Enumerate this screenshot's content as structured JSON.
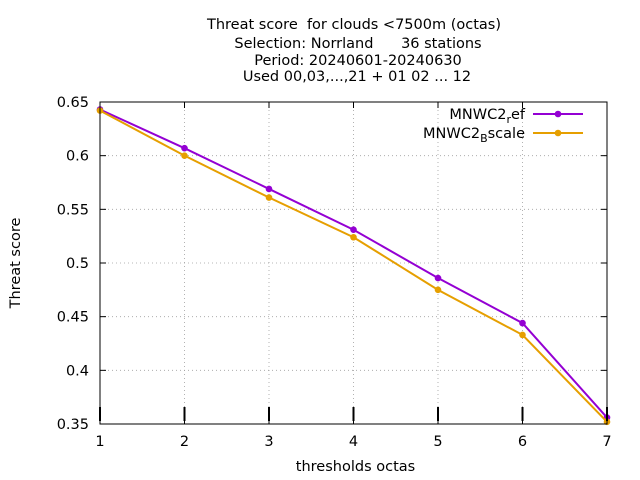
{
  "chart_data": {
    "type": "line",
    "title": "Threat score  for clouds <7500m (octas)",
    "subtitle_lines": [
      "Selection: Norrland      36 stations",
      "Period: 20240601-20240630",
      "Used 00,03,...,21 + 01 02 ... 12"
    ],
    "xlabel": "thresholds octas",
    "ylabel": "Threat score",
    "xlim": [
      1,
      7
    ],
    "ylim": [
      0.35,
      0.65
    ],
    "x_ticks": [
      1,
      2,
      3,
      4,
      5,
      6,
      7
    ],
    "x_tick_labels": [
      "1",
      "2",
      "3",
      "4",
      "5",
      "6",
      "7"
    ],
    "y_ticks": [
      0.35,
      0.4,
      0.45,
      0.5,
      0.55,
      0.6,
      0.65
    ],
    "y_tick_labels": [
      "0.35",
      "0.4",
      "0.45",
      "0.5",
      "0.55",
      "0.6",
      "0.65"
    ],
    "grid": true,
    "legend_position": "top-right",
    "x": [
      1,
      2,
      3,
      4,
      5,
      6,
      7
    ],
    "series": [
      {
        "name": "MNWC2_ref",
        "legend_base": "MNWC2",
        "legend_sub": "r",
        "legend_rest": "ef",
        "color": "#9400d3",
        "values": [
          0.643,
          0.607,
          0.569,
          0.531,
          0.486,
          0.444,
          0.356
        ]
      },
      {
        "name": "MNWC2_Bscale",
        "legend_base": "MNWC2",
        "legend_sub": "B",
        "legend_rest": "scale",
        "color": "#e69f00",
        "values": [
          0.642,
          0.6,
          0.561,
          0.524,
          0.475,
          0.433,
          0.352
        ]
      }
    ]
  }
}
